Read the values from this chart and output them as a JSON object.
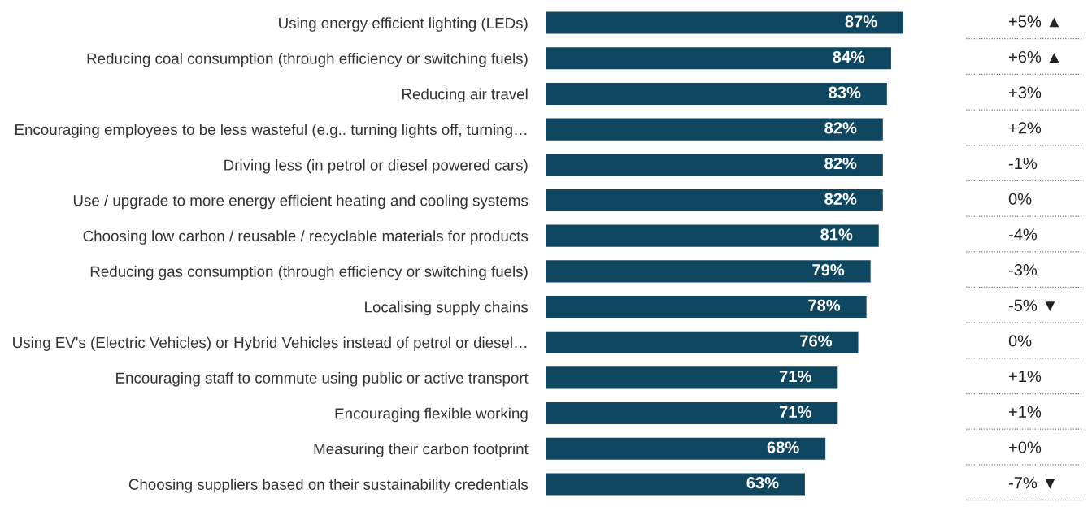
{
  "chart_data": {
    "type": "bar",
    "orientation": "horizontal",
    "color": "#0f4761",
    "data_labels": true,
    "grid": false,
    "tick_labels": "y",
    "categories": [
      "Using energy efficient lighting (LEDs)",
      "Reducing coal consumption (through efficiency or switching fuels)",
      "Reducing air travel",
      "Encouraging employees to be less wasteful (e.g.. turning lights off, turning…",
      "Driving less (in petrol or diesel powered cars)",
      "Use / upgrade to more energy efficient heating and cooling systems",
      "Choosing low carbon / reusable / recyclable materials for products",
      "Reducing gas consumption (through efficiency or switching fuels)",
      "Localising supply chains",
      "Using EV's (Electric Vehicles) or Hybrid Vehicles instead of petrol or diesel…",
      "Encouraging staff to commute using public or active transport",
      "Encouraging flexible working",
      "Measuring their carbon footprint",
      "Choosing suppliers based on their sustainability credentials"
    ],
    "values": [
      87,
      84,
      83,
      82,
      82,
      82,
      81,
      79,
      78,
      76,
      71,
      71,
      68,
      63
    ],
    "value_labels": [
      "87%",
      "84%",
      "83%",
      "82%",
      "82%",
      "82%",
      "81%",
      "79%",
      "78%",
      "76%",
      "71%",
      "71%",
      "68%",
      "63%"
    ],
    "annotations": [
      "+5% ▲",
      "+6% ▲",
      "+3%",
      "+2%",
      "-1%",
      "0%",
      "-4%",
      "-3%",
      "-5% ▼",
      "0%",
      "+1%",
      "+1%",
      "+0%",
      "-7% ▼"
    ]
  }
}
